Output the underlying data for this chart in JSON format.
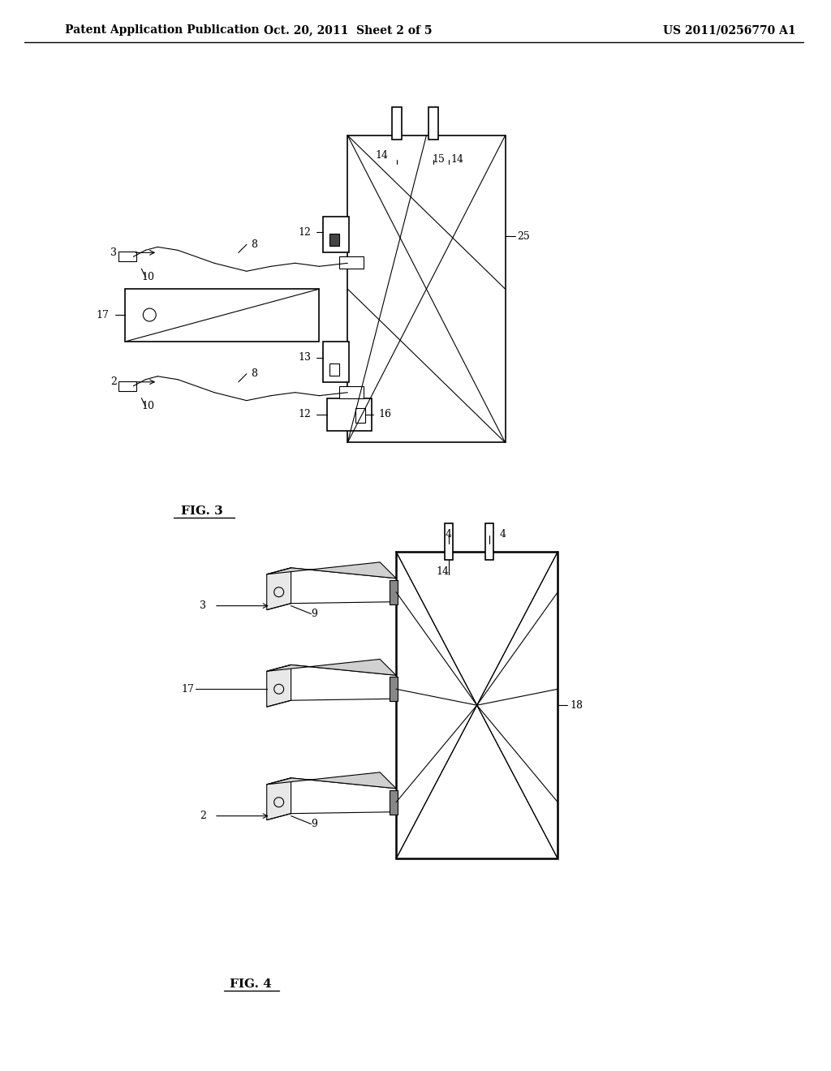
{
  "bg_color": "#ffffff",
  "line_color": "#000000",
  "header_text": "Patent Application Publication",
  "header_date": "Oct. 20, 2011  Sheet 2 of 5",
  "header_patent": "US 2011/0256770 A1",
  "fig3_label": "FIG. 3",
  "fig4_label": "FIG. 4",
  "font_size_header": 10,
  "font_size_label": 11,
  "font_size_ref": 10
}
